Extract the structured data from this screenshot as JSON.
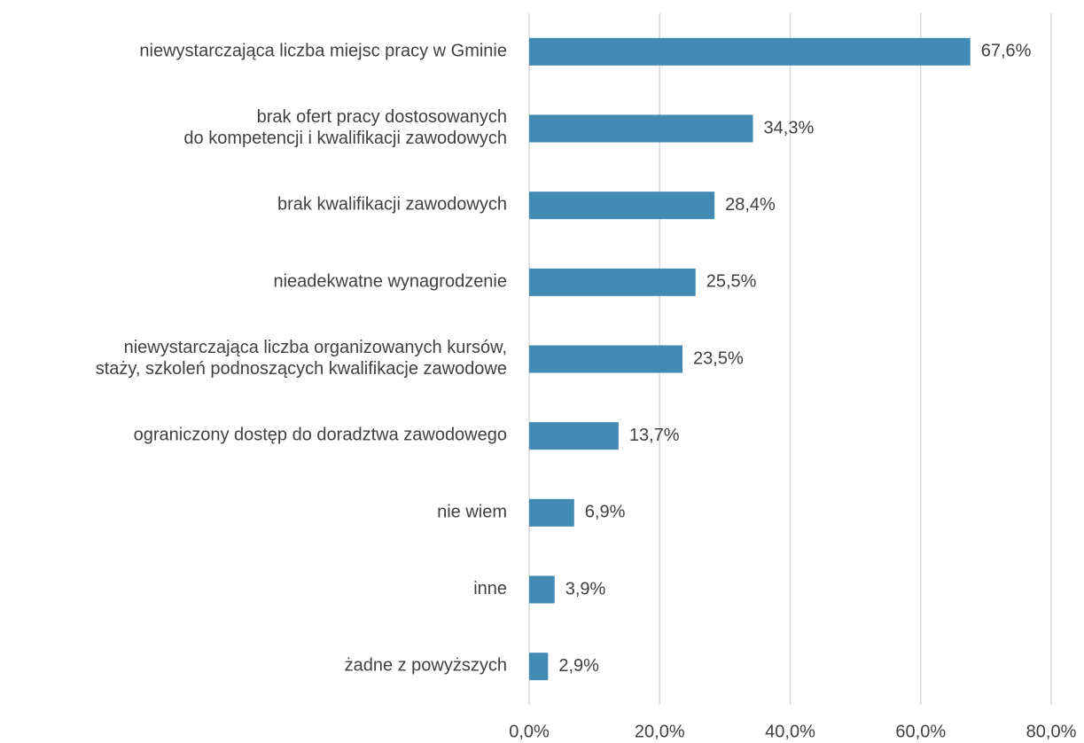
{
  "chart_data": {
    "type": "hbar",
    "categories": [
      "niewystarczająca liczba miejsc pracy w Gminie",
      "brak ofert pracy dostosowanych\ndo kompetencji i kwalifikacji zawodowych",
      "brak kwalifikacji zawodowych",
      "nieadekwatne wynagrodzenie",
      "niewystarczająca liczba organizowanych kursów,\nstaży, szkoleń podnoszących kwalifikacje zawodowe",
      "ograniczony dostęp do doradztwa zawodowego",
      "nie wiem",
      "inne",
      "żadne z powyższych"
    ],
    "values": [
      67.6,
      34.3,
      28.4,
      25.5,
      23.5,
      13.7,
      6.9,
      3.9,
      2.9
    ],
    "value_labels": [
      "67,6%",
      "34,3%",
      "28,4%",
      "25,5%",
      "23,5%",
      "13,7%",
      "6,9%",
      "3,9%",
      "2,9%"
    ],
    "color": "#418ab3",
    "xlim": [
      0,
      80
    ],
    "xticks": [
      {
        "value": 0,
        "label": "0,0%"
      },
      {
        "value": 20,
        "label": "20,0%"
      },
      {
        "value": 40,
        "label": "40,0%"
      },
      {
        "value": 60,
        "label": "60,0%"
      },
      {
        "value": 80,
        "label": "80,0%"
      }
    ],
    "grid": true
  }
}
